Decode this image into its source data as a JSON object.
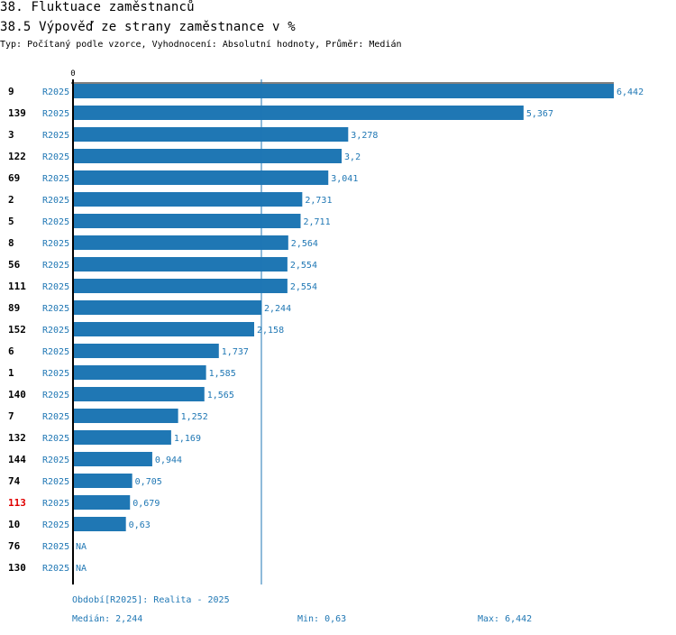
{
  "header": {
    "title": "38. Fluktuace zaměstnanců",
    "subtitle": "38.5 Výpověď ze strany zaměstnance v %",
    "meta": "Typ: Počítaný podle vzorce, Vyhodnocení: Absolutní hodnoty, Průměr: Medián"
  },
  "chart_data": {
    "type": "bar",
    "orientation": "horizontal",
    "title": "38.5 Výpověď ze strany zaměstnance v %",
    "x_axis_zero_label": "0",
    "median_line": 2.244,
    "xlim": [
      0,
      6.442
    ],
    "series_label": "R2025",
    "bar_color": "#1f77b4",
    "highlight_color": "#e00000",
    "rows": [
      {
        "id": "9",
        "period": "R2025",
        "value": 6.442,
        "label": "6,442",
        "highlight": false
      },
      {
        "id": "139",
        "period": "R2025",
        "value": 5.367,
        "label": "5,367",
        "highlight": false
      },
      {
        "id": "3",
        "period": "R2025",
        "value": 3.278,
        "label": "3,278",
        "highlight": false
      },
      {
        "id": "122",
        "period": "R2025",
        "value": 3.2,
        "label": "3,2",
        "highlight": false
      },
      {
        "id": "69",
        "period": "R2025",
        "value": 3.041,
        "label": "3,041",
        "highlight": false
      },
      {
        "id": "2",
        "period": "R2025",
        "value": 2.731,
        "label": "2,731",
        "highlight": false
      },
      {
        "id": "5",
        "period": "R2025",
        "value": 2.711,
        "label": "2,711",
        "highlight": false
      },
      {
        "id": "8",
        "period": "R2025",
        "value": 2.564,
        "label": "2,564",
        "highlight": false
      },
      {
        "id": "56",
        "period": "R2025",
        "value": 2.554,
        "label": "2,554",
        "highlight": false
      },
      {
        "id": "111",
        "period": "R2025",
        "value": 2.554,
        "label": "2,554",
        "highlight": false
      },
      {
        "id": "89",
        "period": "R2025",
        "value": 2.244,
        "label": "2,244",
        "highlight": false
      },
      {
        "id": "152",
        "period": "R2025",
        "value": 2.158,
        "label": "2,158",
        "highlight": false
      },
      {
        "id": "6",
        "period": "R2025",
        "value": 1.737,
        "label": "1,737",
        "highlight": false
      },
      {
        "id": "1",
        "period": "R2025",
        "value": 1.585,
        "label": "1,585",
        "highlight": false
      },
      {
        "id": "140",
        "period": "R2025",
        "value": 1.565,
        "label": "1,565",
        "highlight": false
      },
      {
        "id": "7",
        "period": "R2025",
        "value": 1.252,
        "label": "1,252",
        "highlight": false
      },
      {
        "id": "132",
        "period": "R2025",
        "value": 1.169,
        "label": "1,169",
        "highlight": false
      },
      {
        "id": "144",
        "period": "R2025",
        "value": 0.944,
        "label": "0,944",
        "highlight": false
      },
      {
        "id": "74",
        "period": "R2025",
        "value": 0.705,
        "label": "0,705",
        "highlight": false
      },
      {
        "id": "113",
        "period": "R2025",
        "value": 0.679,
        "label": "0,679",
        "highlight": true
      },
      {
        "id": "10",
        "period": "R2025",
        "value": 0.63,
        "label": "0,63",
        "highlight": false
      },
      {
        "id": "76",
        "period": "R2025",
        "value": null,
        "label": "NA",
        "highlight": false
      },
      {
        "id": "130",
        "period": "R2025",
        "value": null,
        "label": "NA",
        "highlight": false
      }
    ]
  },
  "footer": {
    "period": "Období[R2025]: Realita - 2025",
    "median": "Medián: 2,244",
    "min": "Min: 0,63",
    "max": "Max: 6,442"
  }
}
